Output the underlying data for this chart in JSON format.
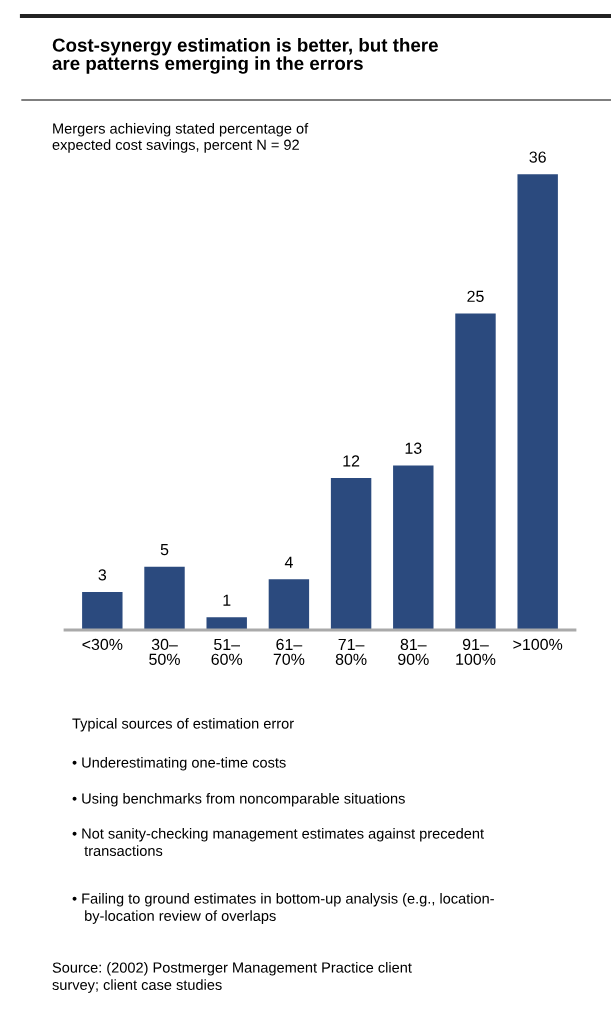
{
  "chart_data": {
    "type": "bar",
    "title": "Cost-synergy estimation is better, but there\nare patterns emerging in the errors",
    "subtitle": "Mergers achieving stated percentage of\nexpected cost savings, percent N = 92",
    "categories": [
      "<30%",
      "30–\n50%",
      "51–\n60%",
      "61–\n70%",
      "71–\n80%",
      "81–\n90%",
      "91–\n100%",
      ">100%"
    ],
    "values": [
      3,
      5,
      1,
      4,
      12,
      13,
      25,
      36
    ],
    "color": "#2b4a7e",
    "data_labels": true,
    "grid": false,
    "annotations": [
      "Typical sources of estimation error",
      "• Underestimating one-time costs",
      "• Using benchmarks from noncomparable situations",
      "• Not sanity-checking management estimates against precedent\n   transactions",
      "• Failing to ground estimates in bottom-up analysis (e.g., location-\n   by-location review of overlaps",
      "Source: (2002) Postmerger Management Practice client\nsurvey; client case studies"
    ]
  }
}
